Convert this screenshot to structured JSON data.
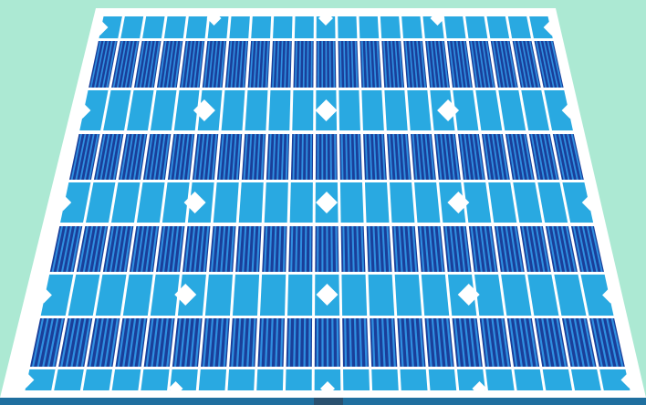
{
  "scene": {
    "subject": "solar-panel",
    "colors": {
      "background": "#ace9d3",
      "frame": "#ffffff",
      "cell": "#29a9e1",
      "cell_stripe_dark": "#1a3f9a",
      "cell_stripe_light": "#2f8fe0",
      "stand": "#1f6f9f",
      "stand_dark": "#2a5170",
      "notch": "#ffffff"
    }
  }
}
